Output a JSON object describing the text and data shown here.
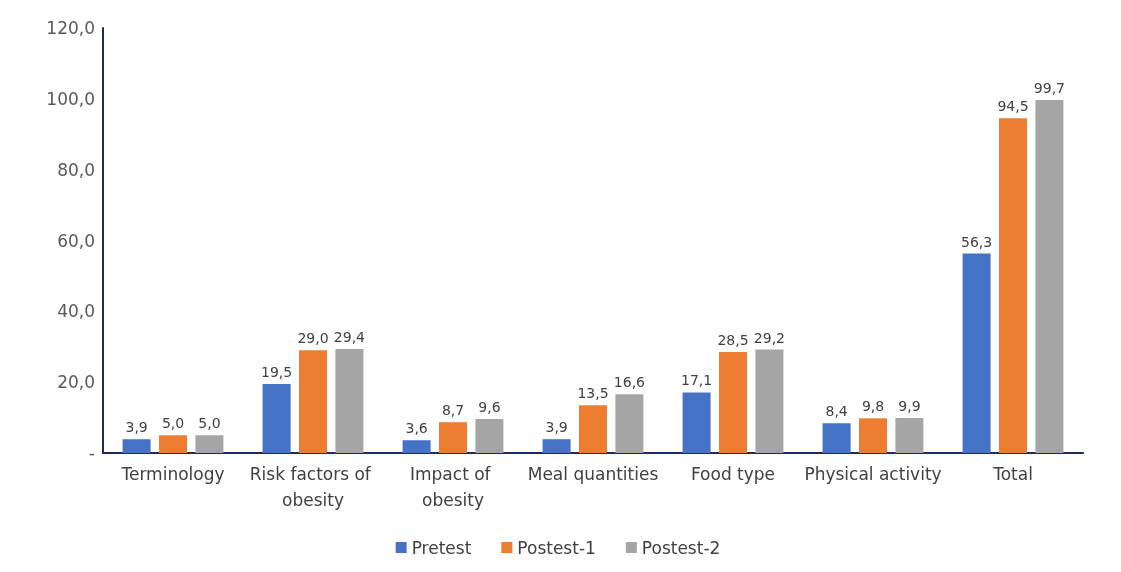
{
  "chart_data": {
    "type": "bar",
    "categories": [
      "Terminology",
      "Risk factors of obesity",
      "Impact of obesity",
      "Meal quantities",
      "Food type",
      "Physical activity",
      "Total"
    ],
    "series": [
      {
        "name": "Pretest",
        "color": "#4472c4",
        "values": [
          3.9,
          19.5,
          3.6,
          3.9,
          17.1,
          8.4,
          56.3
        ],
        "value_labels": [
          "3,9",
          "19,5",
          "3,6",
          "3,9",
          "17,1",
          "8,4",
          "56,3"
        ]
      },
      {
        "name": "Postest-1",
        "color": "#ed7d31",
        "values": [
          5.0,
          29.0,
          8.7,
          13.5,
          28.5,
          9.8,
          94.5
        ],
        "value_labels": [
          "5,0",
          "29,0",
          "8,7",
          "13,5",
          "28,5",
          "9,8",
          "94,5"
        ]
      },
      {
        "name": "Postest-2",
        "color": "#a5a5a5",
        "values": [
          5.0,
          29.4,
          9.6,
          16.6,
          29.2,
          9.9,
          99.7
        ],
        "value_labels": [
          "5,0",
          "29,4",
          "9,6",
          "16,6",
          "29,2",
          "9,9",
          "99,7"
        ]
      }
    ],
    "ylim": [
      0,
      120
    ],
    "yticks": [
      {
        "value": 0,
        "label": "-"
      },
      {
        "value": 20,
        "label": "20,0"
      },
      {
        "value": 40,
        "label": "40,0"
      },
      {
        "value": 60,
        "label": "60,0"
      },
      {
        "value": 80,
        "label": "80,0"
      },
      {
        "value": 100,
        "label": "100,0"
      },
      {
        "value": 120,
        "label": "120,0"
      }
    ],
    "grid": false,
    "legend": "bottom"
  }
}
